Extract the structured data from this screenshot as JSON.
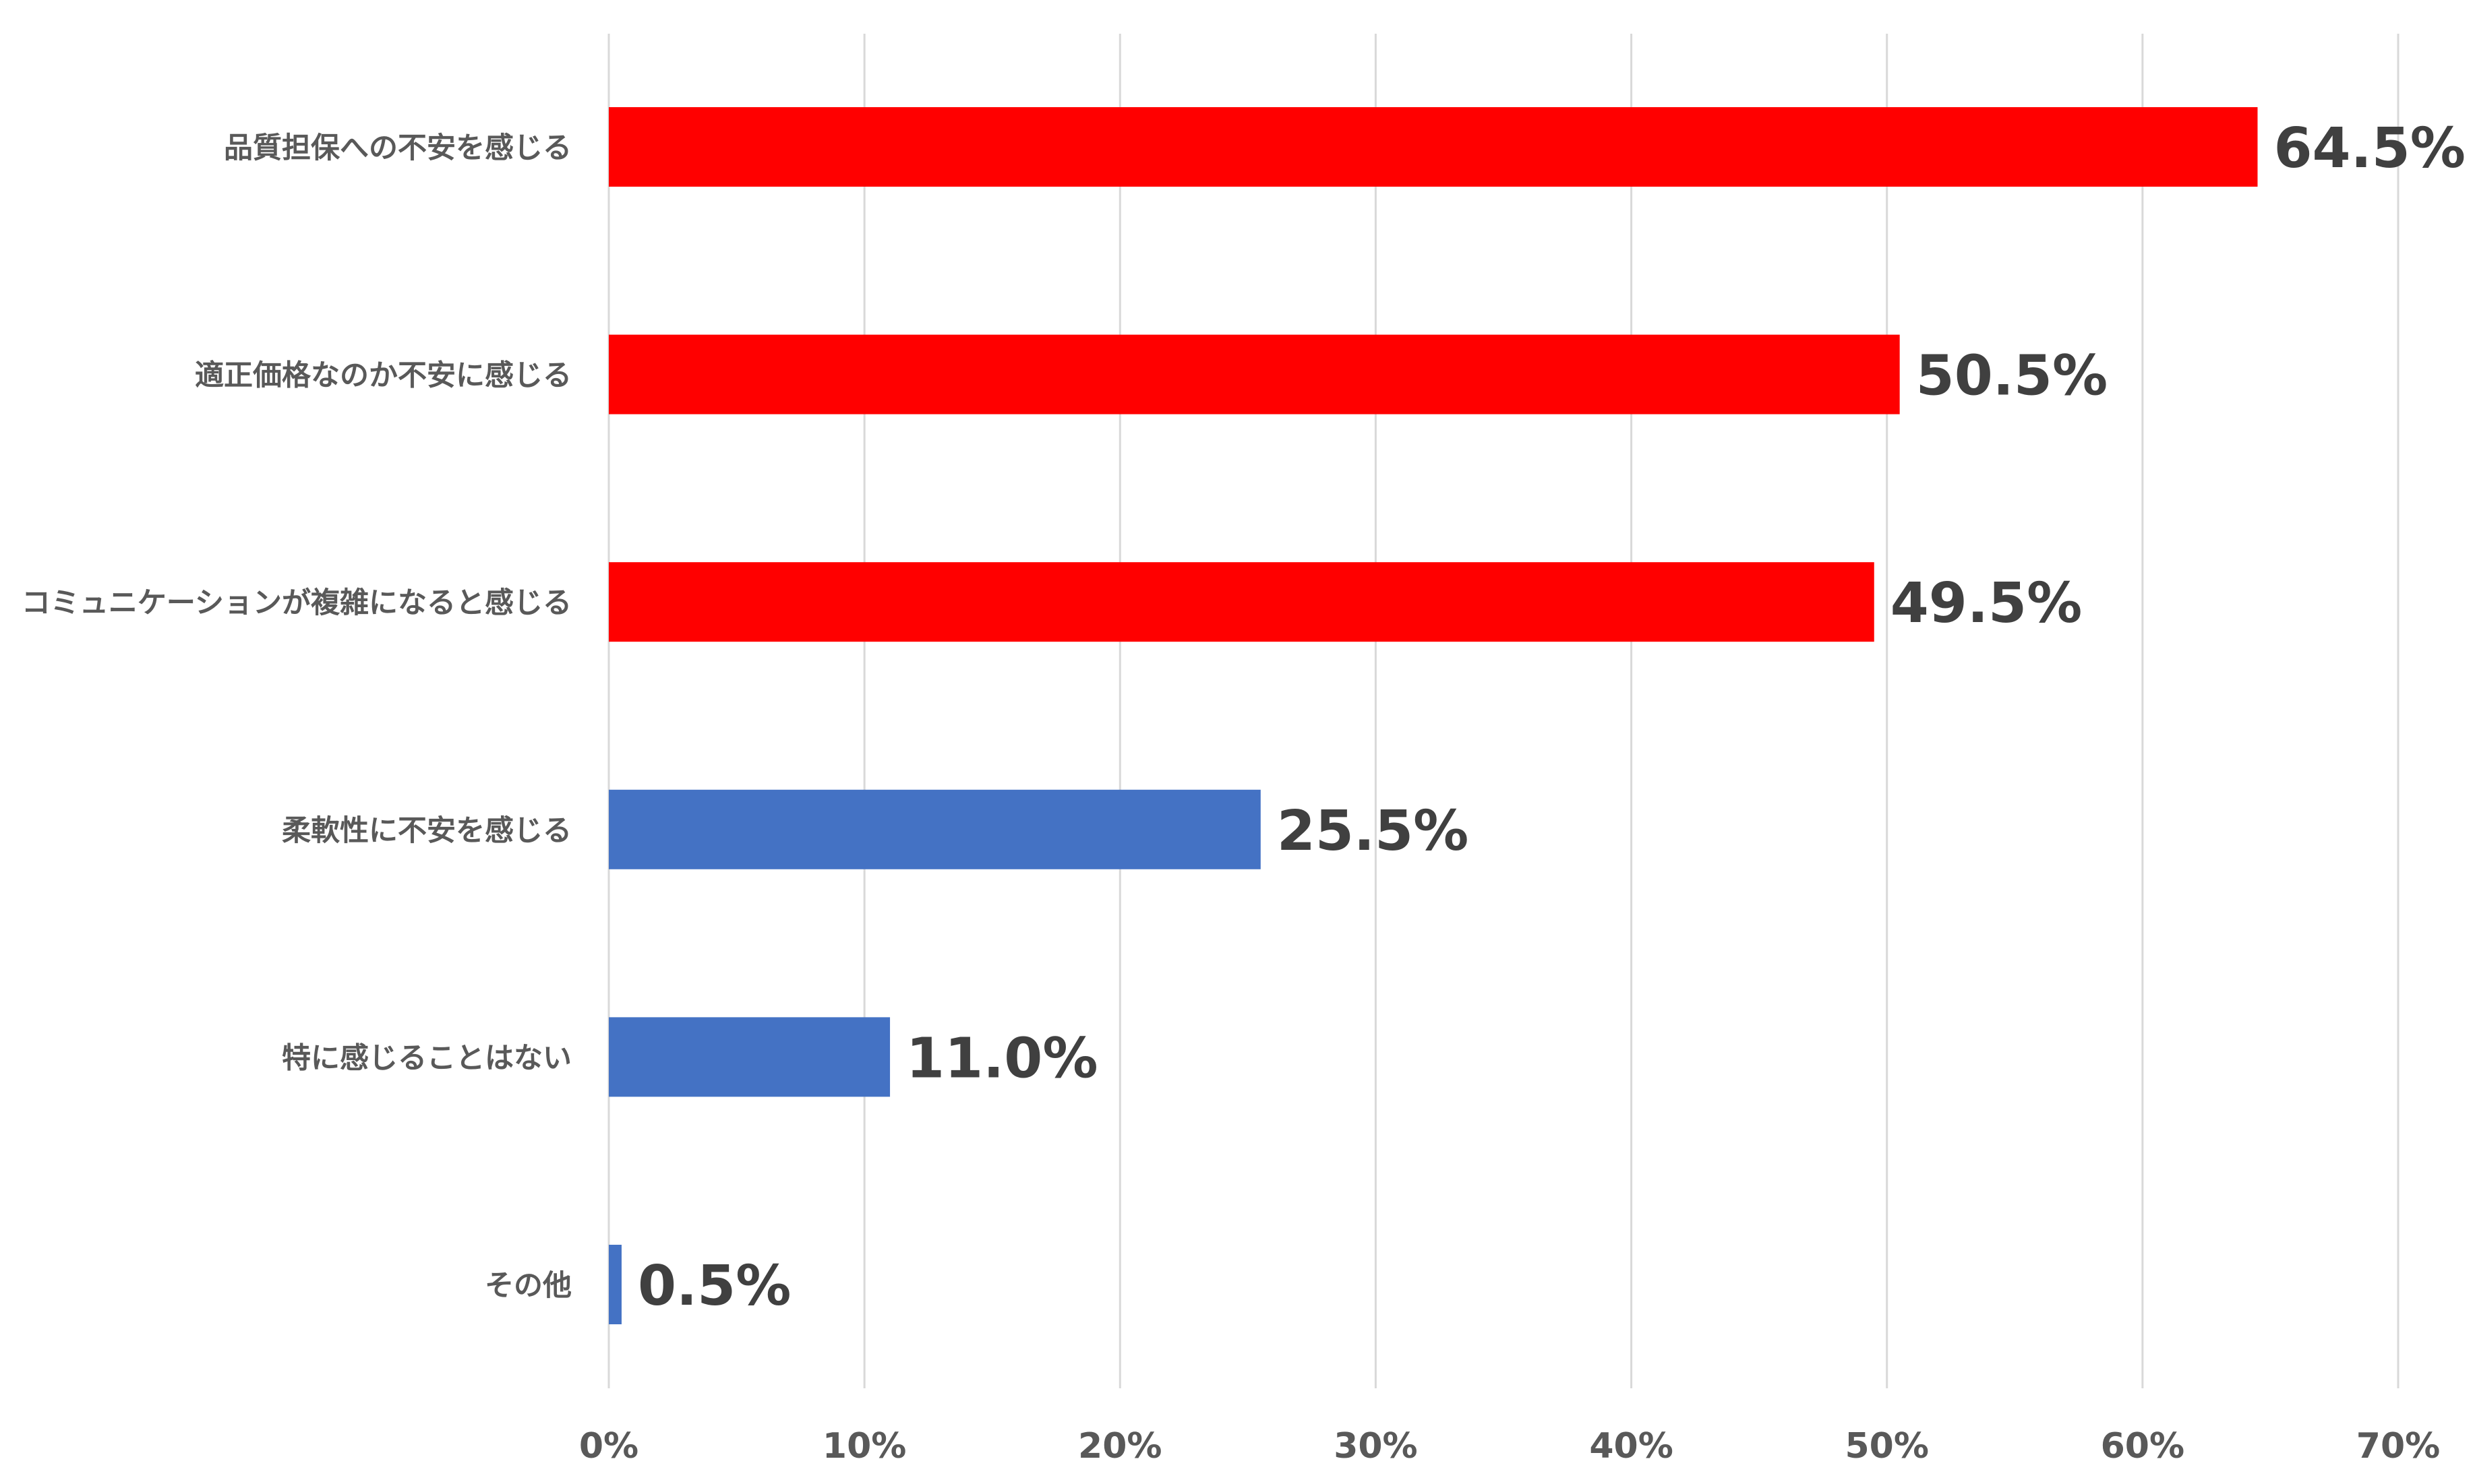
{
  "chart_data": {
    "type": "bar",
    "orientation": "horizontal",
    "categories": [
      "品質担保への不安を感じる",
      "適正価格なのか不安に感じる",
      "コミュニケーションが複雑になると感じる",
      "柔軟性に不安を感じる",
      "特に感じることはない",
      "その他"
    ],
    "values": [
      64.5,
      50.5,
      49.5,
      25.5,
      11.0,
      0.5
    ],
    "data_labels": [
      "64.5%",
      "50.5%",
      "49.5%",
      "25.5%",
      "11.0%",
      "0.5%"
    ],
    "bar_colors": [
      "#ff0000",
      "#ff0000",
      "#ff0000",
      "#4472c4",
      "#4472c4",
      "#4472c4"
    ],
    "xlim": [
      0,
      70
    ],
    "x_ticks": [
      0,
      10,
      20,
      30,
      40,
      50,
      60,
      70
    ],
    "x_tick_labels": [
      "0%",
      "10%",
      "20%",
      "30%",
      "40%",
      "50%",
      "60%",
      "70%"
    ],
    "grid": "vertical",
    "legend": "none",
    "title": "",
    "xlabel": "",
    "ylabel": ""
  }
}
